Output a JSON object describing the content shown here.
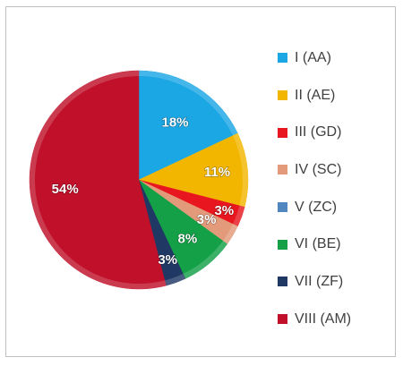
{
  "chart_data": {
    "type": "pie",
    "slices": [
      {
        "name": "I (AA)",
        "value": 18,
        "label": "18%",
        "color": "#1BA6E4"
      },
      {
        "name": "II (AE)",
        "value": 11,
        "label": "11%",
        "color": "#F3B600"
      },
      {
        "name": "III (GD)",
        "value": 3,
        "label": "3%",
        "color": "#E8171F"
      },
      {
        "name": "IV (SC)",
        "value": 3,
        "label": "3%",
        "color": "#E39A7A"
      },
      {
        "name": "V (ZC)",
        "value": 0,
        "label": "",
        "color": "#4F87BE"
      },
      {
        "name": "VI (BE)",
        "value": 8,
        "label": "8%",
        "color": "#13A046"
      },
      {
        "name": "VII (ZF)",
        "value": 3,
        "label": "3%",
        "color": "#203864"
      },
      {
        "name": "VIII (AM)",
        "value": 54,
        "label": "54%",
        "color": "#C0102A"
      }
    ],
    "legend_position": "right"
  }
}
